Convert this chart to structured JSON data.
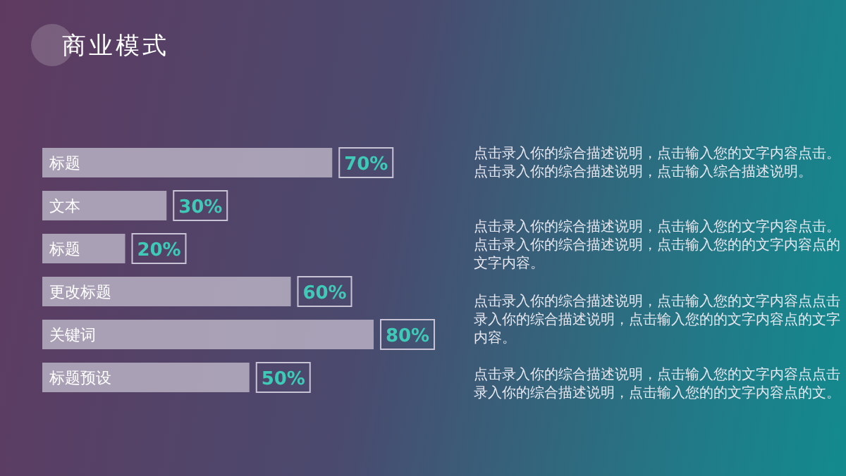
{
  "chart_data": {
    "type": "bar",
    "orientation": "horizontal",
    "title": "商业模式",
    "categories": [
      "标题",
      "文本",
      "标题",
      "更改标题",
      "关键词",
      "标题预设"
    ],
    "values": [
      70,
      30,
      20,
      60,
      80,
      50
    ],
    "value_labels": [
      "70%",
      "30%",
      "20%",
      "60%",
      "80%",
      "50%"
    ],
    "color": "#b3abbf",
    "annotations": [
      "点击录入你的综合描述说明，点击输入您的文字内容点击。点击录入你的综合描述说明，点击输入综合描述说明。",
      "点击录入你的综合描述说明，点击输入您的文字内容点击。点击录入你的综合描述说明，点击输入您的的文字内容点的文字内容。",
      "点击录入你的综合描述说明，点击输入您的文字内容点点击录入你的综合描述说明，点击输入您的的文字内容点的文字内容。",
      "点击录入你的综合描述说明，点击输入您的文字内容点点击录入你的综合描述说明，点击输入您的的文字内容点的文。"
    ]
  }
}
